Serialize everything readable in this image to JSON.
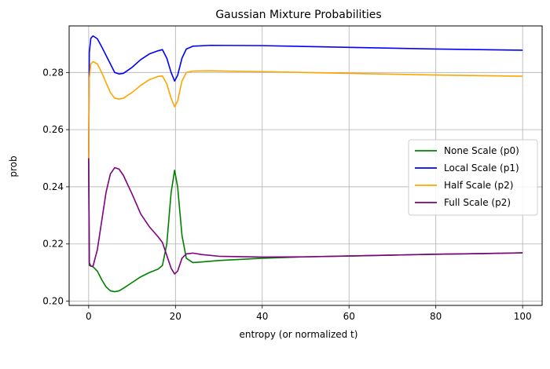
{
  "chart_data": {
    "type": "line",
    "title": "Gaussian Mixture Probabilities",
    "xlabel": "entropy (or normalized t)",
    "ylabel": "prob",
    "xlim": [
      -4.5,
      104.5
    ],
    "ylim": [
      0.1985,
      0.2963
    ],
    "xticks": [
      0,
      20,
      40,
      60,
      80,
      100
    ],
    "yticks": [
      0.2,
      0.22,
      0.24,
      0.26,
      0.28
    ],
    "ytick_labels": [
      "0.20",
      "0.22",
      "0.24",
      "0.26",
      "0.28"
    ],
    "grid": true,
    "legend_position": "center-right",
    "series": [
      {
        "name": "None Scale (p0)",
        "color": "#008000",
        "points": [
          [
            0,
            0.25
          ],
          [
            0.15,
            0.2125
          ],
          [
            1,
            0.212
          ],
          [
            2,
            0.2105
          ],
          [
            3,
            0.2075
          ],
          [
            4,
            0.205
          ],
          [
            5,
            0.2036
          ],
          [
            6,
            0.2033
          ],
          [
            7,
            0.2036
          ],
          [
            8,
            0.2045
          ],
          [
            10,
            0.2065
          ],
          [
            12,
            0.2085
          ],
          [
            14,
            0.21
          ],
          [
            16,
            0.2112
          ],
          [
            17,
            0.2125
          ],
          [
            18,
            0.22
          ],
          [
            19,
            0.238
          ],
          [
            19.8,
            0.2458
          ],
          [
            20.5,
            0.24
          ],
          [
            21.5,
            0.223
          ],
          [
            22.5,
            0.215
          ],
          [
            24,
            0.2135
          ],
          [
            26,
            0.2137
          ],
          [
            30,
            0.2142
          ],
          [
            40,
            0.215
          ],
          [
            50,
            0.2155
          ],
          [
            60,
            0.2158
          ],
          [
            70,
            0.2161
          ],
          [
            80,
            0.2164
          ],
          [
            90,
            0.2166
          ],
          [
            100,
            0.2169
          ]
        ]
      },
      {
        "name": "Local Scale (p1)",
        "color": "#0000ff",
        "points": [
          [
            0,
            0.25
          ],
          [
            0.15,
            0.287
          ],
          [
            0.5,
            0.292
          ],
          [
            1,
            0.2928
          ],
          [
            2,
            0.2918
          ],
          [
            3,
            0.289
          ],
          [
            4,
            0.286
          ],
          [
            5,
            0.283
          ],
          [
            6,
            0.28
          ],
          [
            7,
            0.2795
          ],
          [
            8,
            0.2797
          ],
          [
            10,
            0.2818
          ],
          [
            12,
            0.2845
          ],
          [
            14,
            0.2865
          ],
          [
            16,
            0.2876
          ],
          [
            17,
            0.288
          ],
          [
            18,
            0.285
          ],
          [
            19,
            0.28
          ],
          [
            19.8,
            0.277
          ],
          [
            20.5,
            0.279
          ],
          [
            21.5,
            0.285
          ],
          [
            22.5,
            0.2882
          ],
          [
            24,
            0.2892
          ],
          [
            28,
            0.2895
          ],
          [
            40,
            0.2894
          ],
          [
            60,
            0.2888
          ],
          [
            80,
            0.2882
          ],
          [
            100,
            0.2878
          ]
        ]
      },
      {
        "name": "Half Scale (p2)",
        "color": "#ffa500",
        "points": [
          [
            0,
            0.25
          ],
          [
            0.15,
            0.278
          ],
          [
            0.5,
            0.283
          ],
          [
            1,
            0.2838
          ],
          [
            2,
            0.283
          ],
          [
            3,
            0.28
          ],
          [
            4,
            0.2765
          ],
          [
            5,
            0.273
          ],
          [
            6,
            0.271
          ],
          [
            7,
            0.2707
          ],
          [
            8,
            0.271
          ],
          [
            10,
            0.273
          ],
          [
            12,
            0.2755
          ],
          [
            14,
            0.2775
          ],
          [
            16,
            0.2786
          ],
          [
            17,
            0.2788
          ],
          [
            18,
            0.276
          ],
          [
            19,
            0.271
          ],
          [
            19.8,
            0.268
          ],
          [
            20.5,
            0.27
          ],
          [
            21.5,
            0.277
          ],
          [
            22.5,
            0.28
          ],
          [
            24,
            0.2805
          ],
          [
            28,
            0.2806
          ],
          [
            40,
            0.2803
          ],
          [
            60,
            0.2797
          ],
          [
            80,
            0.2791
          ],
          [
            100,
            0.2787
          ]
        ]
      },
      {
        "name": "Full Scale (p2)",
        "color": "#800080",
        "points": [
          [
            0,
            0.25
          ],
          [
            0.15,
            0.2135
          ],
          [
            0.5,
            0.2122
          ],
          [
            1,
            0.2122
          ],
          [
            2,
            0.218
          ],
          [
            3,
            0.228
          ],
          [
            4,
            0.238
          ],
          [
            5,
            0.2445
          ],
          [
            6,
            0.2467
          ],
          [
            7,
            0.2462
          ],
          [
            8,
            0.244
          ],
          [
            10,
            0.2375
          ],
          [
            12,
            0.2305
          ],
          [
            14,
            0.226
          ],
          [
            16,
            0.2225
          ],
          [
            17,
            0.2205
          ],
          [
            18,
            0.216
          ],
          [
            19,
            0.2115
          ],
          [
            19.8,
            0.2095
          ],
          [
            20.5,
            0.2105
          ],
          [
            21.5,
            0.215
          ],
          [
            22.5,
            0.2165
          ],
          [
            24,
            0.2168
          ],
          [
            26,
            0.2163
          ],
          [
            30,
            0.2157
          ],
          [
            40,
            0.2154
          ],
          [
            50,
            0.2155
          ],
          [
            60,
            0.2158
          ],
          [
            70,
            0.2161
          ],
          [
            80,
            0.2164
          ],
          [
            90,
            0.2166
          ],
          [
            100,
            0.2169
          ]
        ]
      }
    ]
  }
}
